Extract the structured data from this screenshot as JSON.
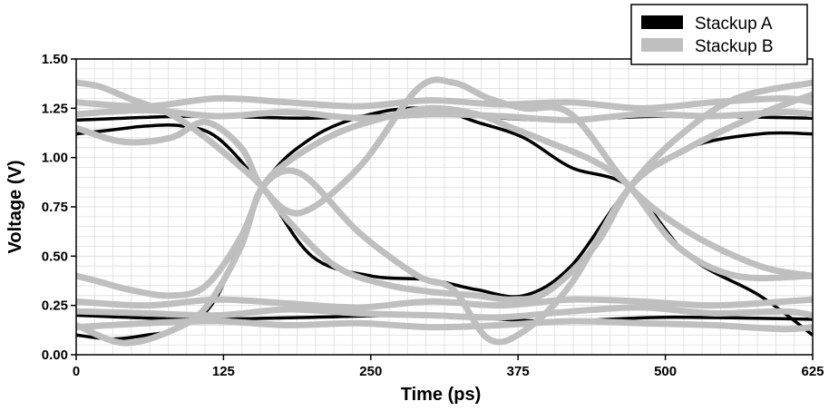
{
  "chart_data": {
    "type": "line",
    "title": "",
    "xlabel": "Time (ps)",
    "ylabel": "Voltage (V)",
    "xlim": [
      0,
      625
    ],
    "ylim": [
      0,
      1.5
    ],
    "xticks": [
      0,
      125,
      250,
      375,
      500,
      625
    ],
    "xtick_labels": [
      "0",
      "125",
      "250",
      "375",
      "500",
      "625"
    ],
    "yticks": [
      0,
      0.25,
      0.5,
      0.75,
      1.0,
      1.25,
      1.5
    ],
    "ytick_labels": [
      "0.00",
      "0.25",
      "0.50",
      "0.75",
      "1.00",
      "1.25",
      "1.50"
    ],
    "grid": true,
    "legend_position": "top-right",
    "eye_crossing_points": [
      {
        "x": 158,
        "y": 0.85
      },
      {
        "x": 470,
        "y": 0.85
      }
    ],
    "series": [
      {
        "name": "Stackup A",
        "color": "#000000",
        "traces": [
          {
            "x": [
              0,
              30,
              60,
              90,
              120,
              158,
              200,
              250,
              300,
              340,
              380,
              420,
              470,
              520,
              580,
              625
            ],
            "y": [
              1.12,
              1.14,
              1.16,
              1.16,
              1.1,
              0.85,
              0.5,
              0.4,
              0.38,
              0.33,
              0.3,
              0.45,
              0.85,
              1.05,
              1.12,
              1.12
            ]
          },
          {
            "x": [
              0,
              30,
              60,
              90,
              120,
              158,
              200,
              250,
              300,
              340,
              380,
              420,
              470,
              520,
              580,
              625
            ],
            "y": [
              0.1,
              0.08,
              0.1,
              0.14,
              0.3,
              0.85,
              1.1,
              1.22,
              1.25,
              1.18,
              1.1,
              0.95,
              0.85,
              0.5,
              0.3,
              0.1
            ]
          },
          {
            "x": [
              0,
              100,
              200,
              300,
              400,
              500,
              625
            ],
            "y": [
              1.19,
              1.21,
              1.2,
              1.22,
              1.19,
              1.21,
              1.2
            ]
          },
          {
            "x": [
              0,
              100,
              200,
              300,
              400,
              500,
              625
            ],
            "y": [
              0.2,
              0.18,
              0.19,
              0.2,
              0.17,
              0.19,
              0.18
            ]
          }
        ]
      },
      {
        "name": "Stackup B",
        "color": "#bfbfbf",
        "traces": [
          {
            "x": [
              0,
              20,
              45,
              80,
              110,
              140,
              158,
              180,
              220,
              260,
              300,
              340,
              370,
              400,
              440,
              470,
              510,
              560,
              625
            ],
            "y": [
              1.38,
              1.36,
              1.3,
              1.22,
              1.1,
              0.95,
              0.85,
              0.68,
              0.45,
              0.36,
              0.32,
              0.3,
              0.28,
              0.32,
              0.55,
              0.85,
              1.1,
              1.3,
              1.38
            ]
          },
          {
            "x": [
              0,
              20,
              45,
              80,
              110,
              140,
              158,
              180,
              220,
              260,
              300,
              340,
              370,
              400,
              440,
              470,
              510,
              560,
              625
            ],
            "y": [
              0.4,
              0.37,
              0.33,
              0.3,
              0.35,
              0.6,
              0.85,
              0.98,
              1.12,
              1.2,
              1.25,
              1.22,
              1.15,
              1.08,
              0.98,
              0.85,
              0.55,
              0.4,
              0.4
            ]
          },
          {
            "x": [
              0,
              40,
              80,
              110,
              140,
              158,
              190,
              240,
              290,
              320,
              350,
              380,
              420,
              470,
              520,
              580,
              625
            ],
            "y": [
              1.15,
              1.08,
              1.1,
              1.18,
              1.05,
              0.85,
              0.72,
              0.95,
              1.35,
              1.38,
              1.3,
              1.25,
              1.22,
              0.85,
              0.62,
              0.45,
              0.4
            ]
          },
          {
            "x": [
              0,
              40,
              80,
              110,
              140,
              158,
              190,
              240,
              290,
              320,
              350,
              380,
              420,
              470,
              520,
              580,
              625
            ],
            "y": [
              0.15,
              0.06,
              0.12,
              0.24,
              0.55,
              0.85,
              0.92,
              0.62,
              0.4,
              0.33,
              0.08,
              0.12,
              0.36,
              0.85,
              1.05,
              1.22,
              1.32
            ]
          },
          {
            "x": [
              0,
              60,
              120,
              180,
              240,
              300,
              360,
              420,
              480,
              540,
              600,
              625
            ],
            "y": [
              1.28,
              1.26,
              1.3,
              1.28,
              1.26,
              1.29,
              1.27,
              1.28,
              1.25,
              1.28,
              1.3,
              1.28
            ]
          },
          {
            "x": [
              0,
              60,
              120,
              180,
              240,
              300,
              360,
              420,
              480,
              540,
              600,
              625
            ],
            "y": [
              1.22,
              1.24,
              1.21,
              1.23,
              1.2,
              1.22,
              1.21,
              1.19,
              1.22,
              1.21,
              1.23,
              1.22
            ]
          },
          {
            "x": [
              0,
              60,
              120,
              180,
              240,
              300,
              360,
              420,
              480,
              540,
              600,
              625
            ],
            "y": [
              0.27,
              0.25,
              0.28,
              0.26,
              0.24,
              0.27,
              0.25,
              0.28,
              0.27,
              0.25,
              0.27,
              0.28
            ]
          },
          {
            "x": [
              0,
              60,
              120,
              180,
              240,
              300,
              360,
              420,
              480,
              540,
              600,
              625
            ],
            "y": [
              0.22,
              0.21,
              0.2,
              0.23,
              0.21,
              0.2,
              0.19,
              0.22,
              0.24,
              0.21,
              0.22,
              0.2
            ]
          },
          {
            "x": [
              0,
              60,
              120,
              180,
              240,
              300,
              360,
              420,
              480,
              540,
              600,
              625
            ],
            "y": [
              0.14,
              0.16,
              0.17,
              0.15,
              0.16,
              0.14,
              0.15,
              0.17,
              0.16,
              0.15,
              0.13,
              0.14
            ]
          }
        ]
      }
    ]
  }
}
